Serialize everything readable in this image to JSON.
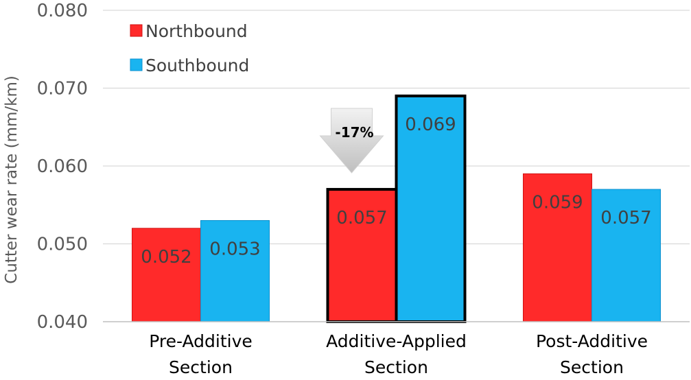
{
  "chart_data": {
    "type": "bar",
    "categories": [
      [
        "Pre-Additive",
        "Section"
      ],
      [
        "Additive-Applied",
        "Section"
      ],
      [
        "Post-Additive",
        "Section"
      ]
    ],
    "series": [
      {
        "name": "Northbound",
        "color": "#ff2a2a",
        "values": [
          0.052,
          0.057,
          0.059
        ],
        "labels": [
          "0.052",
          "0.057",
          "0.059"
        ]
      },
      {
        "name": "Southbound",
        "color": "#19b4f0",
        "values": [
          0.053,
          0.069,
          0.057
        ],
        "labels": [
          "0.053",
          "0.069",
          "0.057"
        ]
      }
    ],
    "ylabel": "Cutter wear rate (mm/km)",
    "ylim": [
      0.04,
      0.08
    ],
    "yticks": [
      0.04,
      0.05,
      0.06,
      0.07,
      0.08
    ],
    "ytick_labels": [
      "0.040",
      "0.050",
      "0.060",
      "0.070",
      "0.080"
    ],
    "highlighted_category": 1,
    "annotation": {
      "text": "-17%",
      "category": 1,
      "shape": "down-arrow"
    },
    "grid": true,
    "legend": "top-left"
  }
}
